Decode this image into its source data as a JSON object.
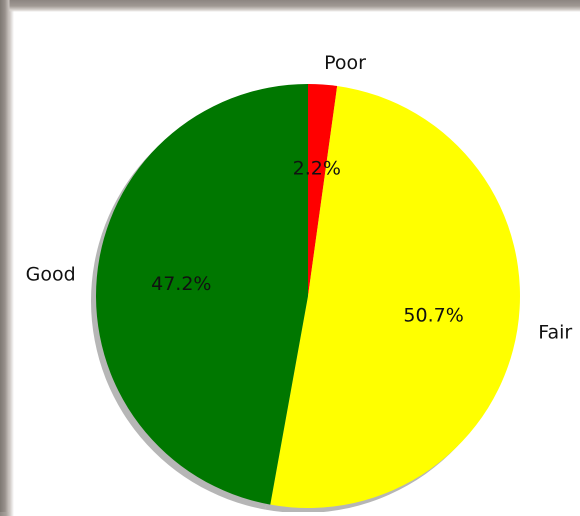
{
  "chart_data": {
    "type": "pie",
    "labels": [
      "Poor",
      "Fair",
      "Good"
    ],
    "values": [
      2.2,
      50.7,
      47.2
    ],
    "percent_labels": [
      "2.2%",
      "50.7%",
      "47.2%"
    ],
    "colors": [
      "#ff0000",
      "#ffff00",
      "#007700"
    ],
    "shadow": true,
    "start_angle_deg": 90,
    "direction": "clockwise"
  }
}
